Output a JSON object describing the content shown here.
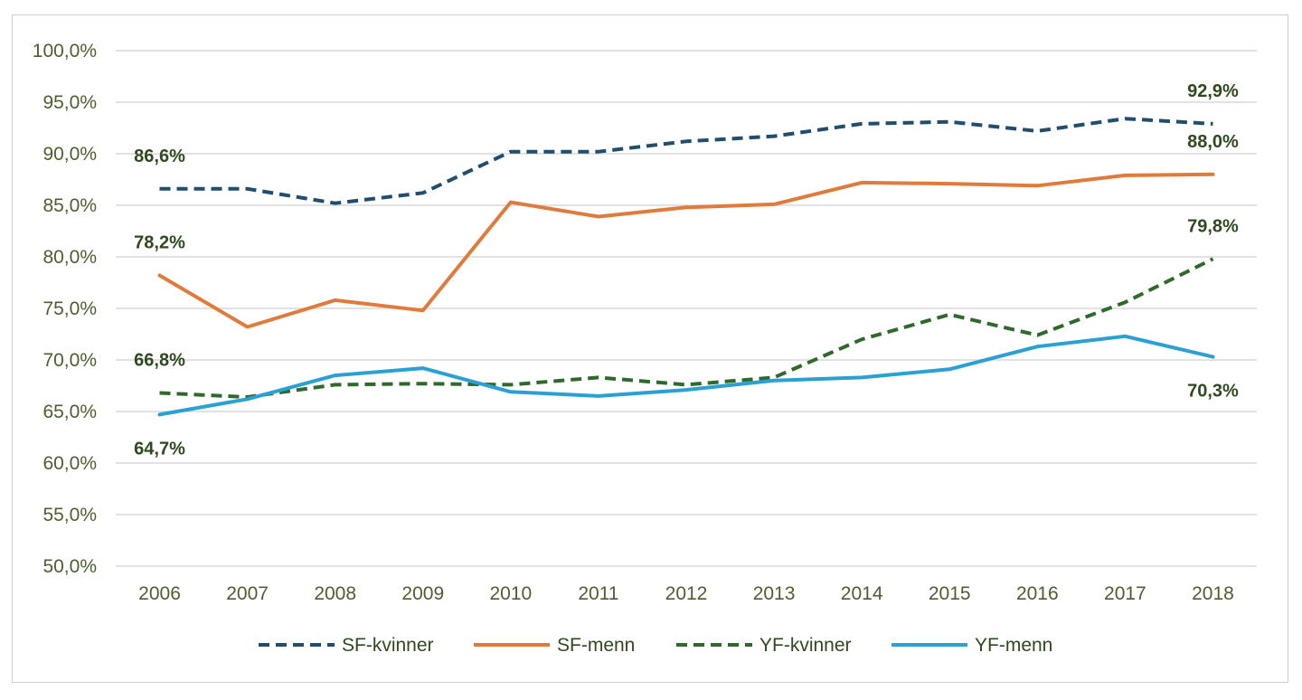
{
  "chart_data": {
    "type": "line",
    "x": [
      "2006",
      "2007",
      "2008",
      "2009",
      "2010",
      "2011",
      "2012",
      "2013",
      "2014",
      "2015",
      "2016",
      "2017",
      "2018"
    ],
    "ylim": [
      50,
      100
    ],
    "yticks": [
      50,
      55,
      60,
      65,
      70,
      75,
      80,
      85,
      90,
      95,
      100
    ],
    "ytick_labels": [
      "50,0%",
      "55,0%",
      "60,0%",
      "65,0%",
      "70,0%",
      "75,0%",
      "80,0%",
      "85,0%",
      "90,0%",
      "95,0%",
      "100,0%"
    ],
    "grid": true,
    "legend_position": "bottom",
    "series": [
      {
        "name": "SF-kvinner",
        "color": "#1f4e6e",
        "dash": "dashed",
        "values": [
          86.6,
          86.6,
          85.2,
          86.2,
          90.2,
          90.2,
          91.2,
          91.7,
          92.9,
          93.1,
          92.2,
          93.4,
          92.9
        ]
      },
      {
        "name": "SF-menn",
        "color": "#e07b3c",
        "dash": "solid",
        "values": [
          78.2,
          73.2,
          75.8,
          74.8,
          85.3,
          83.9,
          84.8,
          85.1,
          87.2,
          87.1,
          86.9,
          87.9,
          88.0
        ]
      },
      {
        "name": "YF-kvinner",
        "color": "#2e6b2a",
        "dash": "dashed",
        "values": [
          66.8,
          66.4,
          67.6,
          67.7,
          67.6,
          68.3,
          67.6,
          68.3,
          72.0,
          74.4,
          72.4,
          75.6,
          79.8
        ]
      },
      {
        "name": "YF-menn",
        "color": "#2aa0d4",
        "dash": "solid",
        "values": [
          64.7,
          66.2,
          68.5,
          69.2,
          66.9,
          66.5,
          67.1,
          68.0,
          68.3,
          69.1,
          71.3,
          72.3,
          70.3
        ]
      }
    ],
    "annotations": [
      {
        "series": "SF-kvinner",
        "index": 0,
        "text": "86,6%",
        "placement": "above"
      },
      {
        "series": "SF-kvinner",
        "index": 12,
        "text": "92,9%",
        "placement": "above"
      },
      {
        "series": "SF-menn",
        "index": 0,
        "text": "78,2%",
        "placement": "above"
      },
      {
        "series": "SF-menn",
        "index": 12,
        "text": "88,0%",
        "placement": "above"
      },
      {
        "series": "YF-kvinner",
        "index": 0,
        "text": "66,8%",
        "placement": "above"
      },
      {
        "series": "YF-kvinner",
        "index": 12,
        "text": "79,8%",
        "placement": "above"
      },
      {
        "series": "YF-menn",
        "index": 0,
        "text": "64,7%",
        "placement": "below"
      },
      {
        "series": "YF-menn",
        "index": 12,
        "text": "70,3%",
        "placement": "below"
      }
    ]
  }
}
